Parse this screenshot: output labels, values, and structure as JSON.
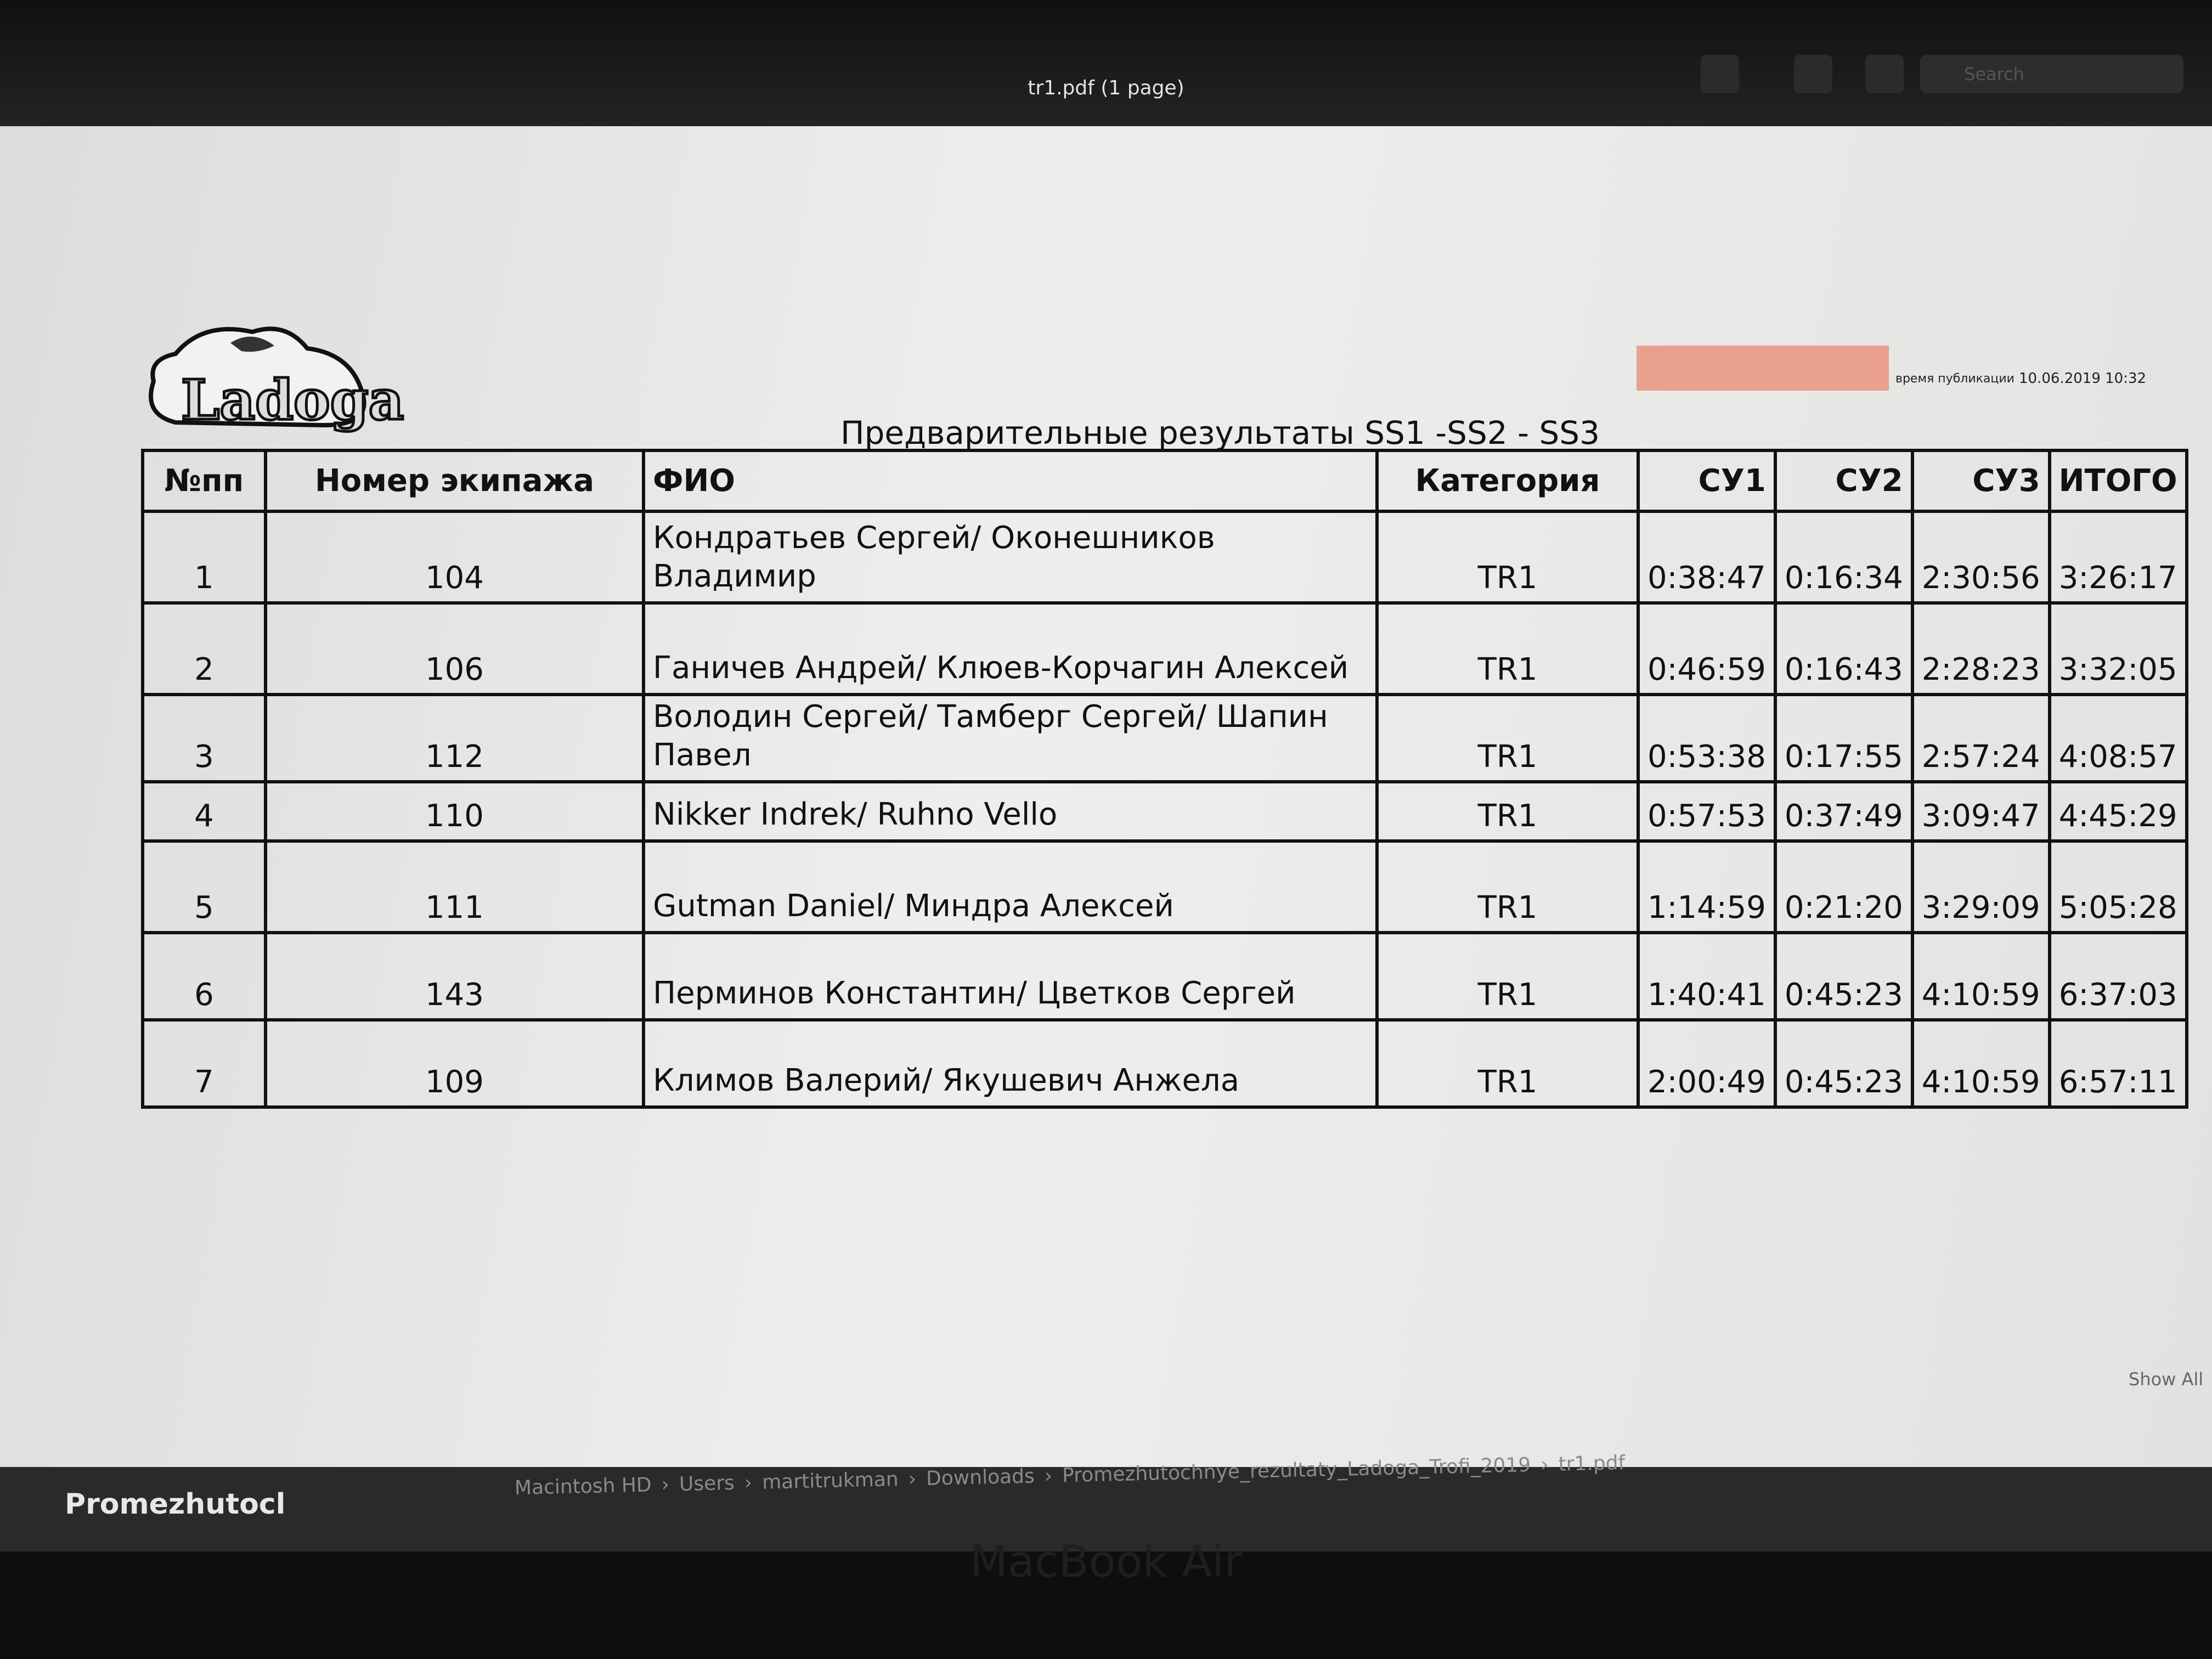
{
  "window": {
    "title": "tr1.pdf (1 page)",
    "search_placeholder": "Search",
    "show_all": "Show All"
  },
  "document": {
    "logo": "Ladoga",
    "title": "Предварительные результаты SS1 -SS2 - SS3",
    "publish_label": "время публикации",
    "publish_time": "10.06.2019 10:32"
  },
  "table": {
    "headers": [
      "№пп",
      "Номер экипажа",
      "ФИО",
      "Категория",
      "СУ1",
      "СУ2",
      "СУ3",
      "ИТОГО"
    ],
    "rows": [
      [
        "1",
        "104",
        "Кондратьев Сергей/ Оконешников Владимир",
        "TR1",
        "0:38:47",
        "0:16:34",
        "2:30:56",
        "3:26:17"
      ],
      [
        "2",
        "106",
        "Ганичев Андрей/ Клюев-Корчагин Алексей",
        "TR1",
        "0:46:59",
        "0:16:43",
        "2:28:23",
        "3:32:05"
      ],
      [
        "3",
        "112",
        "Володин Сергей/ Тамберг Сергей/ Шапин Павел",
        "TR1",
        "0:53:38",
        "0:17:55",
        "2:57:24",
        "4:08:57"
      ],
      [
        "4",
        "110",
        "Nikker Indrek/ Ruhno Vello",
        "TR1",
        "0:57:53",
        "0:37:49",
        "3:09:47",
        "4:45:29"
      ],
      [
        "5",
        "111",
        "Gutman Daniel/ Миндра Алексей",
        "TR1",
        "1:14:59",
        "0:21:20",
        "3:29:09",
        "5:05:28"
      ],
      [
        "6",
        "143",
        "Перминов Константин/ Цветков Сергей",
        "TR1",
        "1:40:41",
        "0:45:23",
        "4:10:59",
        "6:37:03"
      ],
      [
        "7",
        "109",
        "Климов Валерий/ Якушевич Анжела",
        "TR1",
        "2:00:49",
        "0:45:23",
        "4:10:59",
        "6:57:11"
      ]
    ]
  },
  "finder": {
    "sidebar_item": "Promezhutocl",
    "path": [
      "Macintosh HD",
      "Users",
      "martitrukman",
      "Downloads",
      "Promezhutochnye_rezultaty_Ladoga_Trofi_2019",
      "tr1.pdf"
    ]
  },
  "laptop": {
    "label": "MacBook Air"
  }
}
